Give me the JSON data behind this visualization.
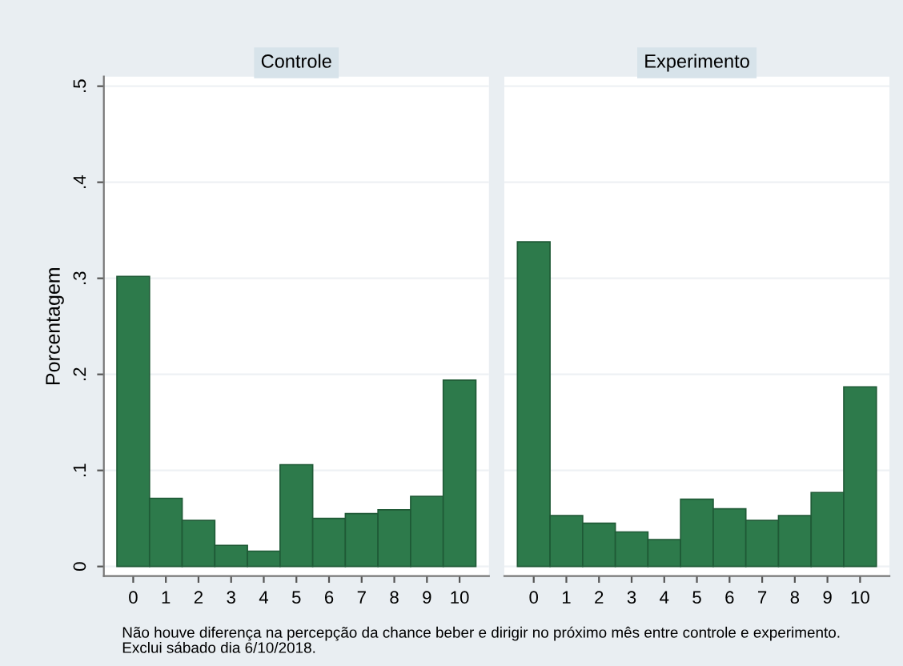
{
  "chart_data": [
    {
      "type": "histogram",
      "title": "Controle",
      "ylabel": "Porcentagem",
      "bins": [
        -0.5,
        0.5,
        1.5,
        2.5,
        3.5,
        4.5,
        5.5,
        6.5,
        7.5,
        8.5,
        9.5,
        10.5
      ],
      "values": [
        0.302,
        0.071,
        0.048,
        0.022,
        0.016,
        0.106,
        0.05,
        0.055,
        0.059,
        0.073,
        0.194
      ],
      "color": "#2d7a4b",
      "xlim": [
        -0.9,
        10.9
      ],
      "xticks": [
        0,
        1,
        2,
        3,
        4,
        5,
        6,
        7,
        8,
        9,
        10
      ],
      "ylim": [
        -0.01,
        0.51
      ],
      "yticks": [
        {
          "value": 0,
          "label": "0"
        },
        {
          "value": 0.1,
          "label": ".1"
        },
        {
          "value": 0.2,
          "label": ".2"
        },
        {
          "value": 0.3,
          "label": ".3"
        },
        {
          "value": 0.4,
          "label": ".4"
        },
        {
          "value": 0.5,
          "label": ".5"
        }
      ],
      "grid": "y",
      "annotations": [
        "Não houve diferença na percepção da chance beber e dirigir no próximo mês entre controle e experimento.\nExclui sábado dia 6/10/2018."
      ]
    },
    {
      "type": "histogram",
      "title": "Experimento",
      "bins": [
        -0.5,
        0.5,
        1.5,
        2.5,
        3.5,
        4.5,
        5.5,
        6.5,
        7.5,
        8.5,
        9.5,
        10.5
      ],
      "values": [
        0.338,
        0.053,
        0.045,
        0.036,
        0.028,
        0.07,
        0.06,
        0.048,
        0.053,
        0.077,
        0.187
      ],
      "color": "#2d7a4b",
      "xlim": [
        -0.9,
        10.9
      ],
      "xticks": [
        0,
        1,
        2,
        3,
        4,
        5,
        6,
        7,
        8,
        9,
        10
      ],
      "ylim": [
        -0.01,
        0.51
      ],
      "yticks": [
        {
          "value": 0,
          "label": null
        },
        {
          "value": 0.1,
          "label": null
        },
        {
          "value": 0.2,
          "label": null
        },
        {
          "value": 0.3,
          "label": null
        },
        {
          "value": 0.4,
          "label": null
        },
        {
          "value": 0.5,
          "label": null
        }
      ],
      "grid": "y",
      "tick_labels": "x"
    }
  ]
}
